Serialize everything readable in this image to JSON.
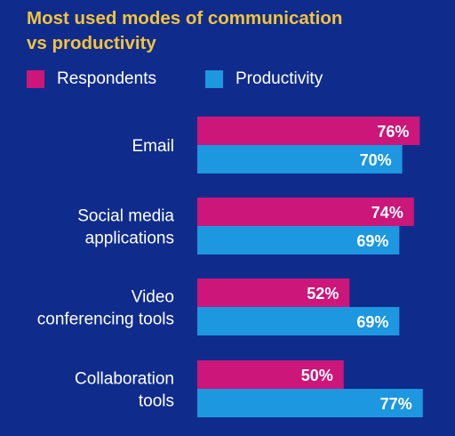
{
  "title_line1": "Most used modes of communication",
  "title_line2": "vs productivity",
  "colors": {
    "background": "#0f2c8c",
    "title": "#f1c33f",
    "respondents": "#cc167a",
    "productivity": "#1c97e0",
    "text": "#ffffff"
  },
  "chart_data": {
    "type": "bar",
    "orientation": "horizontal",
    "categories": [
      [
        "Email"
      ],
      [
        "Social media",
        "applications"
      ],
      [
        "Video",
        "conferencing tools"
      ],
      [
        "Collaboration",
        "tools"
      ]
    ],
    "series": [
      {
        "name": "Respondents",
        "values": [
          76,
          74,
          52,
          50
        ],
        "labels": [
          "76%",
          "74%",
          "52%",
          "50%"
        ]
      },
      {
        "name": "Productivity",
        "values": [
          70,
          69,
          69,
          77
        ],
        "labels": [
          "70%",
          "69%",
          "69%",
          "77%"
        ]
      }
    ],
    "unit": "%",
    "legend_position": "top-left",
    "grid": false
  }
}
